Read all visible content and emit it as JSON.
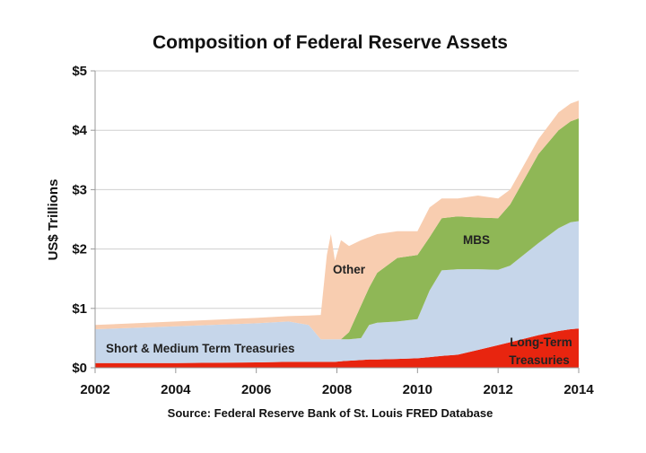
{
  "chart_data": {
    "type": "area",
    "stacked": true,
    "title": "Composition of Federal Reserve Assets",
    "ylabel": "US$ Trillions",
    "xlabel": "",
    "source": "Source: Federal Reserve Bank of St. Louis FRED Database",
    "xlim": [
      2002,
      2014
    ],
    "ylim": [
      0,
      5
    ],
    "x_ticks": [
      "2002",
      "2004",
      "2006",
      "2008",
      "2010",
      "2012",
      "2014"
    ],
    "y_ticks": [
      "$0",
      "$1",
      "$2",
      "$3",
      "$4",
      "$5"
    ],
    "grid": "horizontal",
    "x": [
      2002,
      2004,
      2006,
      2006.8,
      2007.3,
      2007.6,
      2007.75,
      2007.85,
      2007.95,
      2008.1,
      2008.3,
      2008.6,
      2008.8,
      2009,
      2009.5,
      2010,
      2010.3,
      2010.6,
      2011,
      2011.5,
      2012,
      2012.3,
      2013,
      2013.5,
      2013.8,
      2014
    ],
    "series": [
      {
        "name": "Long-Term Treasuries",
        "label_lines": [
          "Long-Term",
          "Treasuries"
        ],
        "color": "#e8250f",
        "values": [
          0.08,
          0.08,
          0.09,
          0.1,
          0.1,
          0.1,
          0.1,
          0.1,
          0.1,
          0.11,
          0.12,
          0.13,
          0.14,
          0.14,
          0.15,
          0.16,
          0.18,
          0.2,
          0.22,
          0.3,
          0.38,
          0.43,
          0.55,
          0.62,
          0.65,
          0.66
        ]
      },
      {
        "name": "Short & Medium Term Treasuries",
        "color": "#c6d6ea",
        "values": [
          0.57,
          0.62,
          0.66,
          0.68,
          0.62,
          0.38,
          0.38,
          0.38,
          0.38,
          0.37,
          0.36,
          0.37,
          0.58,
          0.62,
          0.63,
          0.66,
          1.12,
          1.44,
          1.44,
          1.36,
          1.27,
          1.29,
          1.55,
          1.73,
          1.8,
          1.81
        ]
      },
      {
        "name": "MBS",
        "color": "#8fb756",
        "values": [
          0,
          0,
          0,
          0,
          0,
          0,
          0,
          0,
          0,
          0,
          0.12,
          0.55,
          0.63,
          0.84,
          1.07,
          1.08,
          0.9,
          0.88,
          0.89,
          0.87,
          0.87,
          1.03,
          1.5,
          1.65,
          1.7,
          1.73
        ]
      },
      {
        "name": "Other",
        "color": "#f8cdb0",
        "values": [
          0.07,
          0.08,
          0.09,
          0.09,
          0.16,
          0.41,
          1.42,
          1.77,
          1.32,
          1.67,
          1.45,
          1.1,
          0.85,
          0.65,
          0.45,
          0.4,
          0.5,
          0.33,
          0.3,
          0.37,
          0.33,
          0.25,
          0.25,
          0.3,
          0.3,
          0.3
        ]
      }
    ]
  }
}
